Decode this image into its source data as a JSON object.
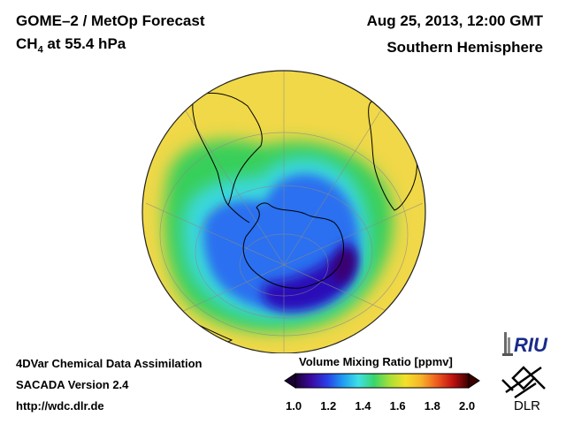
{
  "header": {
    "instrument": "GOME–2 / MetOp Forecast",
    "species": "CH",
    "species_sub": "4",
    "species_level": " at 55.4 hPa",
    "datetime": "Aug 25, 2013, 12:00 GMT",
    "region": "Southern Hemisphere"
  },
  "footer": {
    "line1": "4DVar Chemical Data Assimilation",
    "line2": "SACADA Version 2.4",
    "line3": "http://wdc.dlr.de"
  },
  "colorbar": {
    "title": "Volume Mixing Ratio [ppmv]",
    "ticks": [
      "1.0",
      "1.2",
      "1.4",
      "1.6",
      "1.8",
      "2.0"
    ],
    "colors": [
      "#1a0033",
      "#3b0aa0",
      "#2a3de8",
      "#1e9bf0",
      "#3fe0e6",
      "#3ad46a",
      "#a8e036",
      "#f4e02a",
      "#f6b22a",
      "#ee5a1e",
      "#c01010",
      "#3a0000"
    ]
  },
  "logos": {
    "riu": "RIU",
    "dlr": "DLR"
  },
  "map": {
    "projection": "orthographic",
    "center": "South Pole",
    "field": "CH4 volume mixing ratio"
  }
}
